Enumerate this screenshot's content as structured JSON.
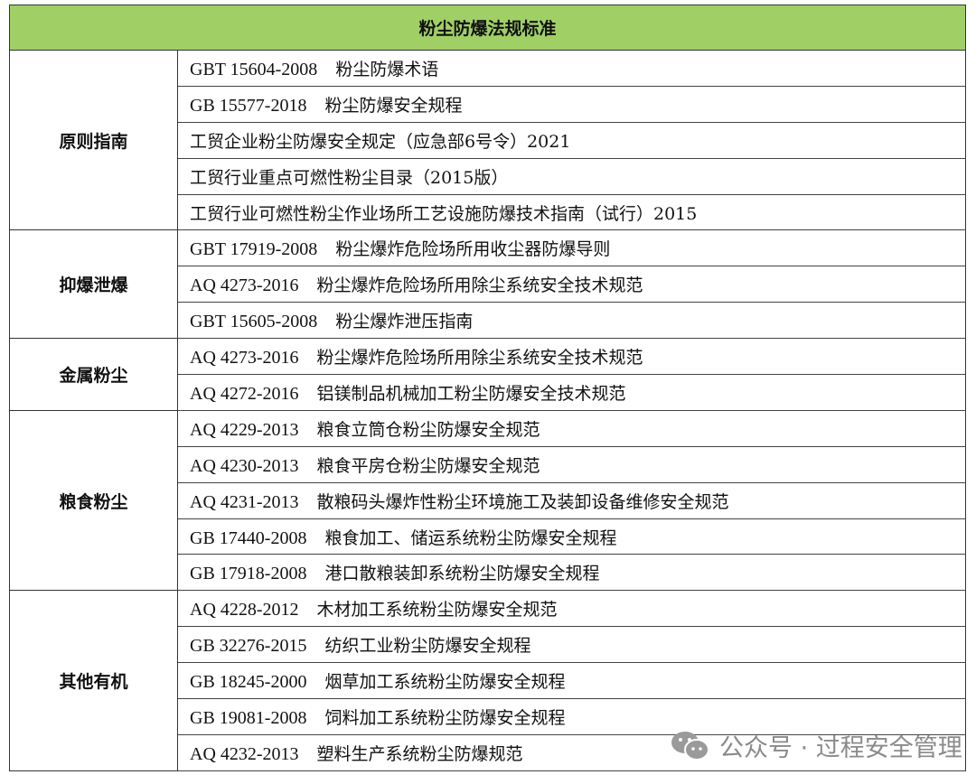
{
  "title": "粉尘防爆法规标准",
  "groups": [
    {
      "category": "原则指南",
      "items": [
        {
          "code": "GBT 15604-2008",
          "name": "粉尘防爆术语"
        },
        {
          "code": "GB 15577-2018",
          "name": "粉尘防爆安全规程"
        },
        {
          "code": "",
          "name": "工贸企业粉尘防爆安全规定（应急部6号令）2021"
        },
        {
          "code": "",
          "name": "工贸行业重点可燃性粉尘目录（2015版）"
        },
        {
          "code": "",
          "name": "工贸行业可燃性粉尘作业场所工艺设施防爆技术指南（试行）2015"
        }
      ]
    },
    {
      "category": "抑爆泄爆",
      "items": [
        {
          "code": "GBT 17919-2008",
          "name": "粉尘爆炸危险场所用收尘器防爆导则"
        },
        {
          "code": "AQ 4273-2016",
          "name": "粉尘爆炸危险场所用除尘系统安全技术规范"
        },
        {
          "code": "GBT 15605-2008",
          "name": "粉尘爆炸泄压指南"
        }
      ]
    },
    {
      "category": "金属粉尘",
      "items": [
        {
          "code": "AQ 4273-2016",
          "name": "粉尘爆炸危险场所用除尘系统安全技术规范"
        },
        {
          "code": "AQ 4272-2016",
          "name": "铝镁制品机械加工粉尘防爆安全技术规范"
        }
      ]
    },
    {
      "category": "粮食粉尘",
      "items": [
        {
          "code": "AQ 4229-2013",
          "name": "粮食立筒仓粉尘防爆安全规范"
        },
        {
          "code": "AQ 4230-2013",
          "name": "粮食平房仓粉尘防爆安全规范"
        },
        {
          "code": "AQ 4231-2013",
          "name": "散粮码头爆炸性粉尘环境施工及装卸设备维修安全规范"
        },
        {
          "code": "GB 17440-2008",
          "name": "粮食加工、储运系统粉尘防爆安全规程"
        },
        {
          "code": "GB 17918-2008",
          "name": "港口散粮装卸系统粉尘防爆安全规程"
        }
      ]
    },
    {
      "category": "其他有机",
      "items": [
        {
          "code": "AQ 4228-2012",
          "name": "木材加工系统粉尘防爆安全规范"
        },
        {
          "code": "GB 32276-2015",
          "name": "纺织工业粉尘防爆安全规程"
        },
        {
          "code": "GB 18245-2000",
          "name": "烟草加工系统粉尘防爆安全规程"
        },
        {
          "code": "GB 19081-2008",
          "name": "饲料加工系统粉尘防爆安全规程"
        },
        {
          "code": "AQ 4232-2013",
          "name": "塑料生产系统粉尘防爆规范"
        }
      ]
    }
  ],
  "watermark": {
    "text": "公众号 · 过程安全管理",
    "icon": "wechat-icon"
  },
  "colors": {
    "header_bg": "#a0cf66"
  }
}
